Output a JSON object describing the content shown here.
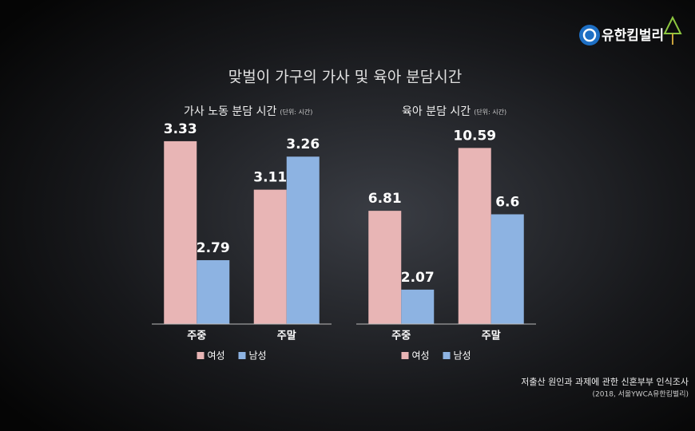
{
  "title": "맞벌이 가구의 가사 및 육아 분담시간",
  "logo": "유한킴벌리",
  "source": [
    "저출산 원인과 과제에 관한 신혼부부 인식조사",
    "(2018, 서울YWCA유한킴벌리)"
  ],
  "chart_data": [
    {
      "type": "bar",
      "title": "가사 노동 분담 시간",
      "subtitle": "(단위: 시간)",
      "categories": [
        "주중",
        "주말"
      ],
      "series": [
        {
          "name": "여성",
          "color": "#e8b5b5",
          "values": [
            3.33,
            3.11
          ]
        },
        {
          "name": "남성",
          "color": "#8db3e2",
          "values": [
            2.79,
            3.26
          ]
        }
      ],
      "ylim": [
        2.5,
        3.5
      ]
    },
    {
      "type": "bar",
      "title": "육아 분담 시간",
      "subtitle": "(단위: 시간)",
      "categories": [
        "주중",
        "주말"
      ],
      "series": [
        {
          "name": "여성",
          "color": "#e8b5b5",
          "values": [
            6.81,
            10.59
          ]
        },
        {
          "name": "남성",
          "color": "#8db3e2",
          "values": [
            2.07,
            6.6
          ]
        }
      ],
      "ylim": [
        0,
        12
      ]
    }
  ]
}
